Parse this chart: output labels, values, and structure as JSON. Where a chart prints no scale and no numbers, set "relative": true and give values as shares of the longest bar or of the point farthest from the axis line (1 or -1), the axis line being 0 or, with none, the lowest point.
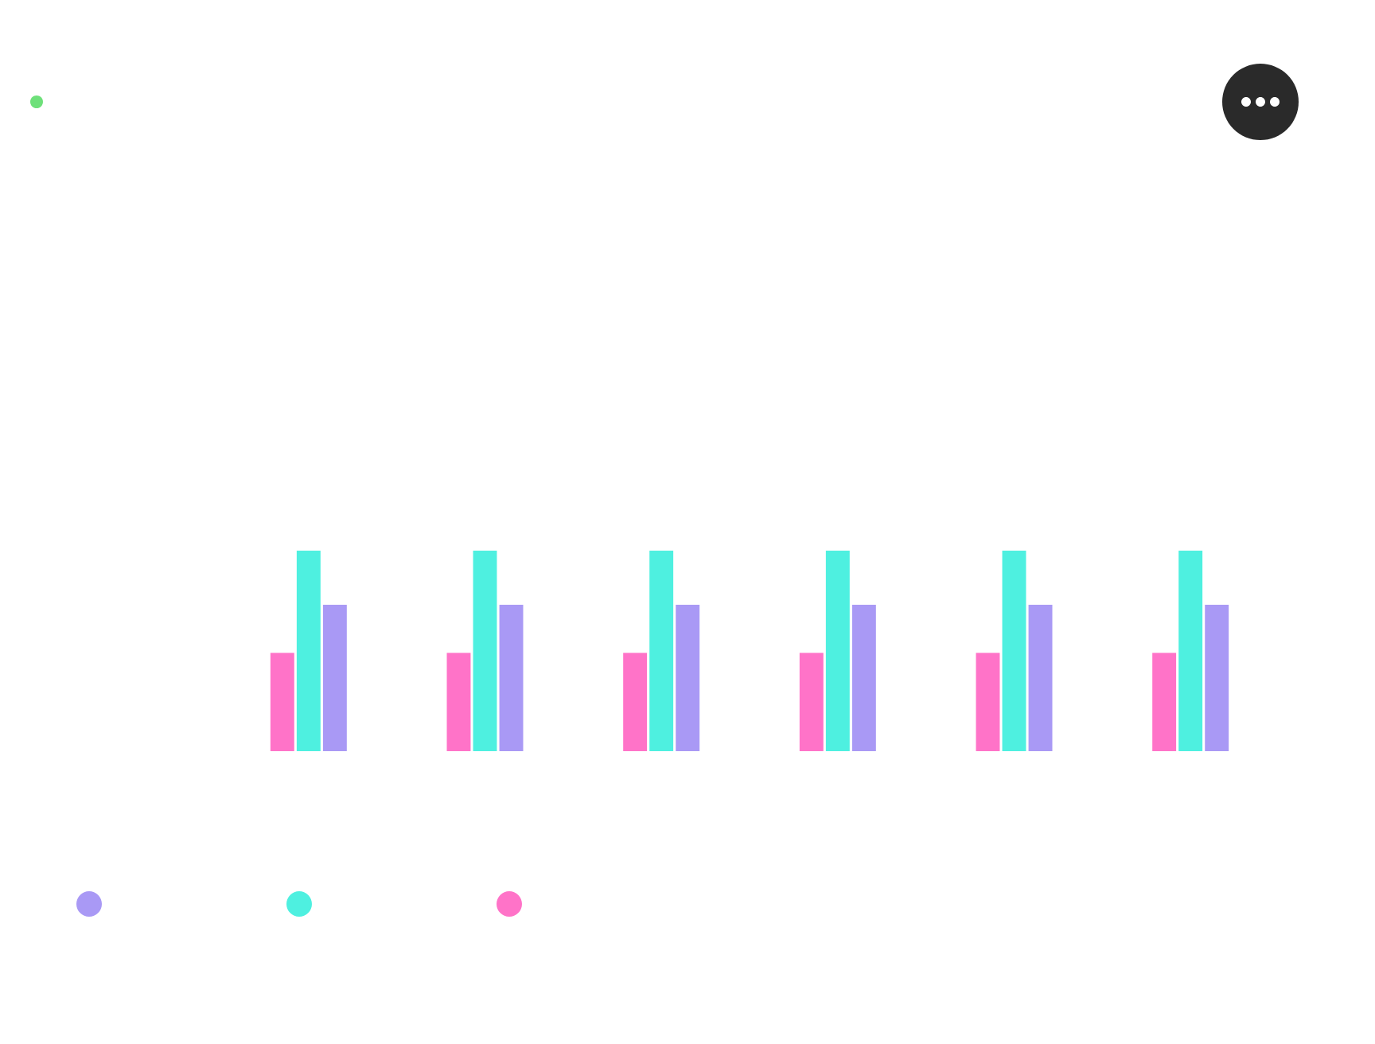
{
  "chart_data": {
    "type": "bar",
    "relative": true,
    "grid": false,
    "categories": [
      null,
      null,
      null,
      null,
      null,
      null
    ],
    "series": [
      {
        "color": "#ff73c8",
        "values": [
          0.49,
          0.49,
          0.49,
          0.49,
          0.49,
          0.49
        ]
      },
      {
        "color": "#4ef0e0",
        "values": [
          1,
          1,
          1,
          1,
          1,
          1
        ]
      },
      {
        "color": "#a999f5",
        "values": [
          0.73,
          0.73,
          0.73,
          0.73,
          0.73,
          0.73
        ]
      }
    ]
  }
}
